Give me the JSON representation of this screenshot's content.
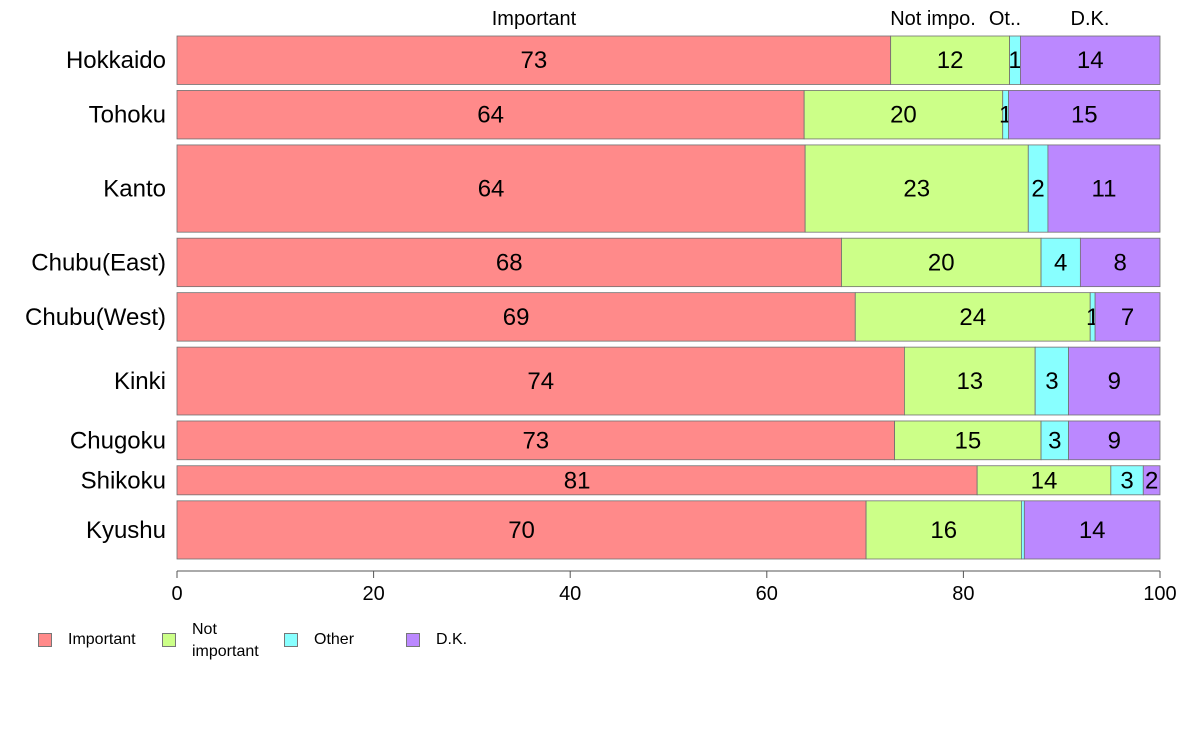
{
  "chart_data": {
    "type": "bar",
    "orientation": "horizontal",
    "stacked": true,
    "top_labels": [
      "Important",
      "Not impo.",
      "Ot..",
      "D.K."
    ],
    "categories": [
      "Hokkaido",
      "Tohoku",
      "Kanto",
      "Chubu(East)",
      "Chubu(West)",
      "Kinki",
      "Chugoku",
      "Shikoku",
      "Kyushu"
    ],
    "category_weight": [
      5,
      5,
      9,
      5,
      5,
      7,
      4,
      3,
      6
    ],
    "series": [
      {
        "name": "Important",
        "color": "#ff8a8a",
        "values": [
          72.6,
          63.8,
          63.9,
          67.6,
          69.0,
          74.0,
          73.0,
          81.4,
          70.1
        ],
        "labels": [
          "73",
          "64",
          "64",
          "68",
          "69",
          "74",
          "73",
          "81",
          "70"
        ]
      },
      {
        "name": "Not important",
        "color": "#ccff88",
        "values": [
          12.1,
          20.2,
          22.7,
          20.3,
          23.9,
          13.3,
          14.9,
          13.6,
          15.8
        ],
        "labels": [
          "12",
          "20",
          "23",
          "20",
          "24",
          "13",
          "15",
          "14",
          "16"
        ]
      },
      {
        "name": "Other",
        "color": "#88ffff",
        "values": [
          1.1,
          0.6,
          2.0,
          4.0,
          0.5,
          3.4,
          2.8,
          3.3,
          0.3
        ],
        "labels": [
          "1",
          "1",
          "2",
          "4",
          "1",
          "3",
          "3",
          "3",
          ""
        ]
      },
      {
        "name": "D.K.",
        "color": "#bb88ff",
        "values": [
          14.2,
          15.4,
          11.4,
          8.1,
          6.6,
          9.3,
          9.3,
          1.7,
          13.8
        ],
        "labels": [
          "14",
          "15",
          "11",
          "8",
          "7",
          "9",
          "9",
          "2",
          "14"
        ]
      }
    ],
    "x_ticks": [
      "0",
      "20",
      "40",
      "60",
      "80",
      "100"
    ],
    "xlim": [
      0,
      100
    ],
    "grid": false,
    "legend_position": "bottom-left"
  },
  "legend": [
    {
      "name": "Important",
      "line1": "Important",
      "line2": "",
      "color": "#ff8a8a"
    },
    {
      "name": "Not important",
      "line1": "Not",
      "line2": "important",
      "color": "#ccff88"
    },
    {
      "name": "Other",
      "line1": "Other",
      "line2": "",
      "color": "#88ffff"
    },
    {
      "name": "D.K.",
      "line1": "D.K.",
      "line2": "",
      "color": "#bb88ff"
    }
  ]
}
